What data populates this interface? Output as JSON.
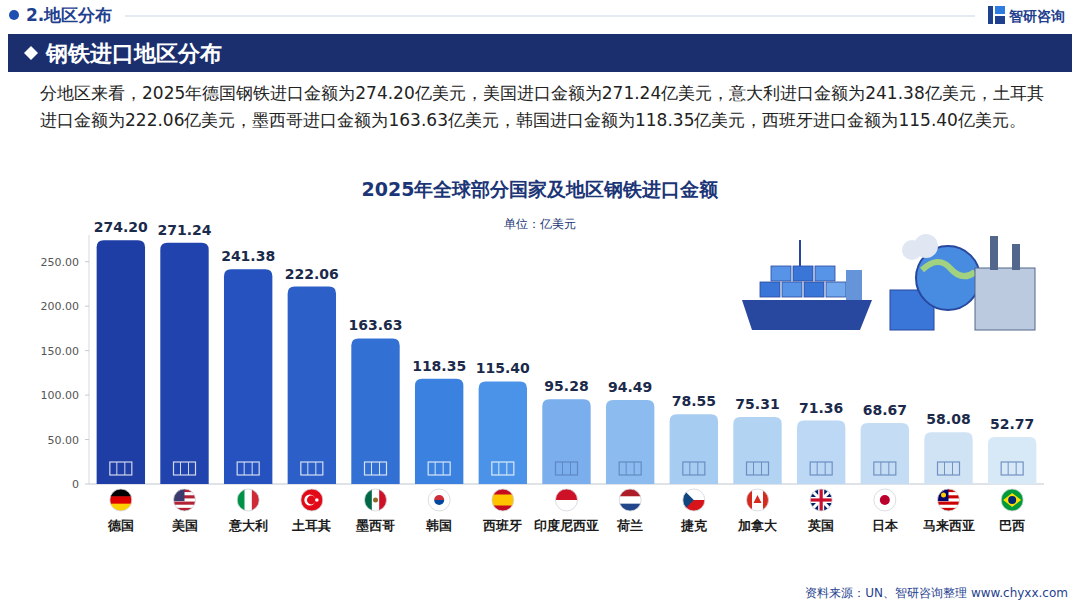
{
  "header": {
    "section": "2.地区分布",
    "logo": "智研咨询",
    "banner": "钢铁进口地区分布"
  },
  "paragraph": "分地区来看，2025年德国钢铁进口金额为274.20亿美元，美国进口金额为271.24亿美元，意大利进口金额为241.38亿美元，土耳其进口金额为222.06亿美元，墨西哥进口金额为163.63亿美元，韩国进口金额为118.35亿美元，西班牙进口金额为115.40亿美元。",
  "source": "资料来源：UN、智研咨询整理   www.chyxx.com",
  "chart_data": {
    "type": "bar",
    "title": "2025年全球部分国家及地区钢铁进口金额",
    "subtitle": "单位：亿美元",
    "categories": [
      "德国",
      "美国",
      "意大利",
      "土耳其",
      "墨西哥",
      "韩国",
      "西班牙",
      "印度尼西亚",
      "荷兰",
      "捷克",
      "加拿大",
      "英国",
      "日本",
      "马来西亚",
      "巴西"
    ],
    "values": [
      274.2,
      271.24,
      241.38,
      222.06,
      163.63,
      118.35,
      115.4,
      95.28,
      94.49,
      78.55,
      75.31,
      71.36,
      68.67,
      58.08,
      52.77
    ],
    "value_labels": [
      "274.20",
      "271.24",
      "241.38",
      "222.06",
      "163.63",
      "118.35",
      "115.40",
      "95.28",
      "94.49",
      "78.55",
      "75.31",
      "71.36",
      "68.67",
      "58.08",
      "52.77"
    ],
    "colors": [
      "#1e3ea6",
      "#2143ad",
      "#2552bf",
      "#2c60c8",
      "#3270d4",
      "#3b82e0",
      "#4b93e8",
      "#7aaeed",
      "#8cbcef",
      "#a6ccf2",
      "#b3d3f3",
      "#bcd8f4",
      "#c5ddf4",
      "#cfe3f5",
      "#d7e8f6"
    ],
    "ylim": [
      0,
      280
    ],
    "yticks": [
      0,
      {
        "value": 50,
        "label": "50.00"
      },
      {
        "value": 100,
        "label": "100.00"
      },
      {
        "value": 150,
        "label": "150.00"
      },
      {
        "value": 200,
        "label": "200.00"
      },
      {
        "value": 250,
        "label": "250.00"
      }
    ],
    "grid": false,
    "data_labels": true
  }
}
